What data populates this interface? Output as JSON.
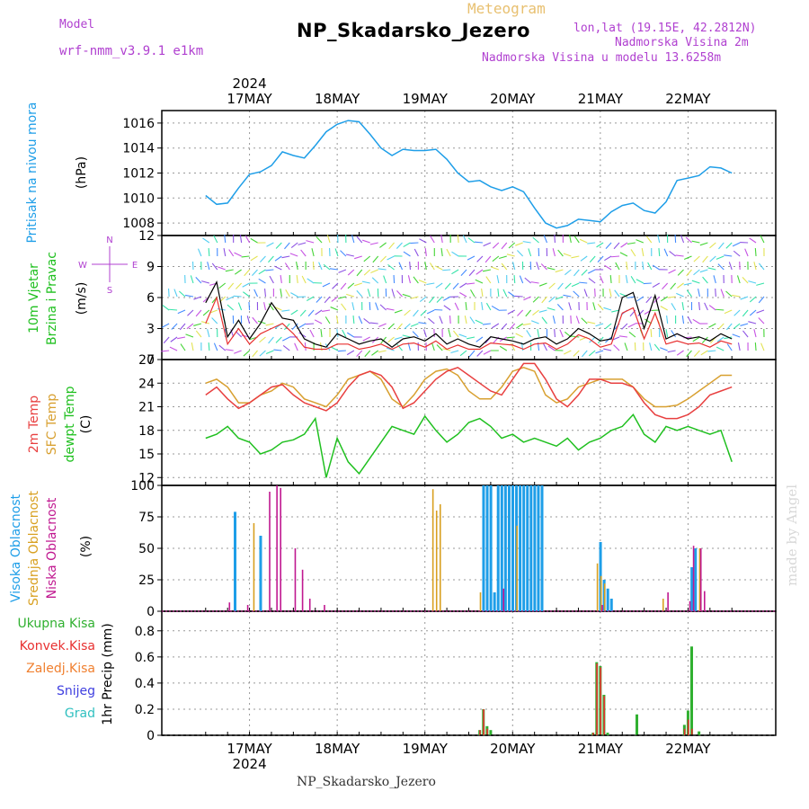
{
  "header": {
    "model_label": "Model",
    "model_value": "wrf-nmm_v3.9.1  e1km",
    "product": "Meteogram",
    "station": "NP_Skadarsko_Jezero",
    "coords": "lon,lat (19.15E, 42.2812N)",
    "elevation": "Nadmorska Visina 2m",
    "model_elevation": "Nadmorska Visina u modelu 13.6258m"
  },
  "footer": {
    "station": "NP_Skadarsko_Jezero",
    "watermark": "made by Angel"
  },
  "colors": {
    "pressure": "#1e9ee8",
    "wind_speed": "#000000",
    "wind_gust": "#e83030",
    "temp2m": "#e84040",
    "tempsfc": "#d8a030",
    "dewpoint": "#20c020",
    "cloud_high": "#1e9ee8",
    "cloud_mid": "#d8a020",
    "cloud_low": "#c01890",
    "precip_total": "#30b030",
    "precip_conv": "#e83030",
    "precip_frozen": "#f08030",
    "precip_snow": "#4040e0",
    "precip_graupel": "#30c0c0"
  },
  "chart_data": [
    {
      "type": "line",
      "panel": "pressure",
      "ylabel_left": "Pritisak na nivou mora",
      "ylabel_unit": "(hPa)",
      "x_unit": "hours since 2024-05-16 12:00 UTC",
      "x_ticks": [
        "17MAY",
        "18MAY",
        "19MAY",
        "20MAY",
        "21MAY",
        "22MAY"
      ],
      "x_top_year": "2024",
      "ylim": [
        1007,
        1017
      ],
      "yticks": [
        1008,
        1010,
        1012,
        1014,
        1016
      ],
      "grid": true,
      "series": [
        {
          "name": "Pritisak na nivou mora",
          "x": [
            0,
            3,
            6,
            9,
            12,
            15,
            18,
            21,
            24,
            27,
            30,
            33,
            36,
            39,
            42,
            45,
            48,
            51,
            54,
            57,
            60,
            63,
            66,
            69,
            72,
            75,
            78,
            81,
            84,
            87,
            90,
            93,
            96,
            99,
            102,
            105,
            108,
            111,
            114,
            117,
            120,
            123,
            126,
            129,
            132,
            135,
            138,
            141,
            144
          ],
          "values": [
            1010.2,
            1009.5,
            1009.6,
            1010.8,
            1011.9,
            1012.1,
            1012.6,
            1013.7,
            1013.4,
            1013.2,
            1014.2,
            1015.3,
            1015.9,
            1016.2,
            1016.1,
            1015.1,
            1014.0,
            1013.4,
            1013.9,
            1013.8,
            1013.8,
            1013.9,
            1013.1,
            1012.0,
            1011.3,
            1011.4,
            1010.9,
            1010.6,
            1010.9,
            1010.5,
            1009.2,
            1008.0,
            1007.6,
            1007.8,
            1008.3,
            1008.2,
            1008.1,
            1008.9,
            1009.4,
            1009.6,
            1009.0,
            1008.8,
            1009.7,
            1011.4,
            1011.6,
            1011.8,
            1012.5,
            1012.4,
            1012.0
          ]
        }
      ]
    },
    {
      "type": "line",
      "panel": "wind",
      "ylabel_left": [
        "10m Vjetar",
        "Brzina i Pravac"
      ],
      "ylabel_unit": "(m/s)",
      "compass": [
        "N",
        "E",
        "W",
        "S"
      ],
      "ylim": [
        0,
        12
      ],
      "yticks": [
        0,
        3,
        6,
        9,
        12
      ],
      "grid": true,
      "series": [
        {
          "name": "10m Vjetar",
          "x": [
            0,
            3,
            6,
            9,
            12,
            15,
            18,
            21,
            24,
            27,
            30,
            33,
            36,
            39,
            42,
            45,
            48,
            51,
            54,
            57,
            60,
            63,
            66,
            69,
            72,
            75,
            78,
            81,
            84,
            87,
            90,
            93,
            96,
            99,
            102,
            105,
            108,
            111,
            114,
            117,
            120,
            123,
            126,
            129,
            132,
            135,
            138,
            141,
            144
          ],
          "values": [
            5.5,
            7.5,
            2.2,
            3.8,
            2.0,
            3.5,
            5.5,
            4.0,
            3.8,
            2.0,
            1.5,
            1.2,
            2.5,
            2.0,
            1.5,
            1.8,
            2.0,
            1.2,
            2.0,
            2.2,
            1.8,
            2.5,
            1.5,
            2.0,
            1.5,
            1.2,
            2.2,
            2.0,
            1.8,
            1.5,
            2.0,
            2.2,
            1.5,
            2.0,
            3.0,
            2.5,
            1.8,
            2.0,
            6.0,
            6.5,
            3.0,
            6.2,
            2.0,
            2.5,
            2.0,
            2.2,
            1.8,
            2.5,
            2.0
          ]
        },
        {
          "name": "Brzina i Pravac",
          "x": [
            0,
            3,
            6,
            9,
            12,
            15,
            18,
            21,
            24,
            27,
            30,
            33,
            36,
            39,
            42,
            45,
            48,
            51,
            54,
            57,
            60,
            63,
            66,
            69,
            72,
            75,
            78,
            81,
            84,
            87,
            90,
            93,
            96,
            99,
            102,
            105,
            108,
            111,
            114,
            117,
            120,
            123,
            126,
            129,
            132,
            135,
            138,
            141,
            144
          ],
          "values": [
            3.5,
            6.0,
            1.5,
            3.0,
            1.5,
            2.5,
            3.0,
            3.5,
            2.5,
            1.2,
            1.0,
            1.0,
            1.5,
            1.5,
            1.0,
            1.2,
            1.5,
            1.0,
            1.5,
            1.6,
            1.2,
            1.8,
            1.0,
            1.4,
            1.0,
            1.0,
            1.6,
            1.5,
            1.4,
            1.0,
            1.5,
            1.6,
            1.0,
            1.5,
            2.4,
            2.0,
            1.2,
            1.5,
            4.5,
            5.0,
            2.0,
            4.5,
            1.5,
            1.8,
            1.5,
            1.6,
            1.2,
            1.8,
            1.5
          ]
        }
      ]
    },
    {
      "type": "line",
      "panel": "temperature",
      "ylabel_left": [
        "2m Temp",
        "SFC Temp",
        "dewpt Temp"
      ],
      "ylabel_unit": "(C)",
      "ylim": [
        11,
        27
      ],
      "yticks": [
        12,
        15,
        18,
        21,
        24,
        27
      ],
      "grid": true,
      "series": [
        {
          "name": "2m Temp",
          "x": [
            0,
            3,
            6,
            9,
            12,
            15,
            18,
            21,
            24,
            27,
            30,
            33,
            36,
            39,
            42,
            45,
            48,
            51,
            54,
            57,
            60,
            63,
            66,
            69,
            72,
            75,
            78,
            81,
            84,
            87,
            90,
            93,
            96,
            99,
            102,
            105,
            108,
            111,
            114,
            117,
            120,
            123,
            126,
            129,
            132,
            135,
            138,
            141,
            144
          ],
          "values": [
            22.5,
            23.5,
            22.0,
            20.8,
            21.5,
            22.5,
            23.5,
            23.8,
            22.5,
            21.5,
            21.0,
            20.5,
            21.5,
            23.5,
            25.0,
            25.5,
            25.0,
            23.5,
            20.8,
            21.5,
            23.0,
            24.5,
            25.5,
            26.0,
            25.0,
            24.0,
            23.0,
            22.5,
            24.5,
            26.5,
            26.5,
            24.5,
            22.0,
            21.0,
            22.5,
            24.5,
            24.5,
            24.0,
            24.0,
            23.5,
            21.5,
            20.0,
            19.5,
            19.5,
            20.0,
            21.0,
            22.5,
            23.0,
            23.5
          ]
        },
        {
          "name": "SFC Temp",
          "x": [
            0,
            3,
            6,
            9,
            12,
            15,
            18,
            21,
            24,
            27,
            30,
            33,
            36,
            39,
            42,
            45,
            48,
            51,
            54,
            57,
            60,
            63,
            66,
            69,
            72,
            75,
            78,
            81,
            84,
            87,
            90,
            93,
            96,
            99,
            102,
            105,
            108,
            111,
            114,
            117,
            120,
            123,
            126,
            129,
            132,
            135,
            138,
            141,
            144
          ],
          "values": [
            24.0,
            24.5,
            23.5,
            21.5,
            21.5,
            22.5,
            23.0,
            24.0,
            23.5,
            22.0,
            21.5,
            21.0,
            22.5,
            24.5,
            25.0,
            25.5,
            24.5,
            22.0,
            21.0,
            22.5,
            24.5,
            25.5,
            25.8,
            25.0,
            23.0,
            22.0,
            22.0,
            23.5,
            25.5,
            26.0,
            25.5,
            22.5,
            21.5,
            22.0,
            23.5,
            24.0,
            24.5,
            24.5,
            24.5,
            23.5,
            22.0,
            21.0,
            21.0,
            21.2,
            22.0,
            23.0,
            24.0,
            25.0,
            25.0
          ]
        },
        {
          "name": "dewpt Temp",
          "x": [
            0,
            3,
            6,
            9,
            12,
            15,
            18,
            21,
            24,
            27,
            30,
            33,
            36,
            39,
            42,
            45,
            48,
            51,
            54,
            57,
            60,
            63,
            66,
            69,
            72,
            75,
            78,
            81,
            84,
            87,
            90,
            93,
            96,
            99,
            102,
            105,
            108,
            111,
            114,
            117,
            120,
            123,
            126,
            129,
            132,
            135,
            138,
            141,
            144
          ],
          "values": [
            17.0,
            17.5,
            18.5,
            17.0,
            16.5,
            15.0,
            15.5,
            16.5,
            16.8,
            17.5,
            19.5,
            12.0,
            17.0,
            14.0,
            12.5,
            14.5,
            16.5,
            18.5,
            18.0,
            17.5,
            19.8,
            18.0,
            16.5,
            17.5,
            19.0,
            19.5,
            18.5,
            17.0,
            17.5,
            16.5,
            17.0,
            16.5,
            16.0,
            17.0,
            15.5,
            16.5,
            17.0,
            18.0,
            18.5,
            20.0,
            17.5,
            16.5,
            18.5,
            18.0,
            18.5,
            18.0,
            17.5,
            18.0,
            14.0
          ]
        }
      ]
    },
    {
      "type": "bar",
      "panel": "cloud",
      "ylabel_left": [
        "Visoka Oblacnost",
        "Srednja Oblacnost",
        "Niska Oblacnost"
      ],
      "ylabel_unit": "(%)",
      "ylim": [
        0,
        100
      ],
      "yticks": [
        0,
        25,
        50,
        75,
        100
      ],
      "grid": true,
      "series": [
        {
          "name": "Visoka Oblacnost",
          "x": [
            8,
            15,
            76,
            77,
            78,
            79,
            80,
            81,
            82,
            83,
            84,
            85,
            86,
            87,
            88,
            89,
            90,
            91,
            92,
            108,
            109,
            110,
            111,
            133,
            134
          ],
          "values": [
            79,
            60,
            100,
            100,
            100,
            15,
            100,
            100,
            100,
            100,
            100,
            100,
            100,
            100,
            100,
            100,
            100,
            100,
            100,
            55,
            25,
            18,
            10,
            35,
            50
          ]
        },
        {
          "name": "Srednja Oblacnost",
          "x": [
            13,
            62,
            63,
            64,
            75,
            85,
            107,
            108,
            109,
            125,
            135
          ],
          "values": [
            70,
            97,
            80,
            85,
            15,
            68,
            38,
            28,
            22,
            10,
            50
          ]
        },
        {
          "name": "Niska Oblacnost",
          "x": [
            6,
            11,
            17,
            19,
            20,
            24,
            26,
            28,
            32,
            81,
            108,
            126,
            132,
            133,
            135,
            136
          ],
          "values": [
            7,
            5,
            95,
            100,
            98,
            50,
            33,
            10,
            5,
            18,
            5,
            15,
            8,
            52,
            50,
            16
          ]
        }
      ]
    },
    {
      "type": "bar",
      "panel": "precip",
      "ylabel_left": [
        "Ukupna Kisa",
        "Konvek.Kisa",
        "Zaledj.Kisa",
        "Snijeg",
        "Grad"
      ],
      "ylabel_unit": "1hr Precip (mm)",
      "ylim": [
        0,
        0.95
      ],
      "yticks": [
        0,
        0.2,
        0.4,
        0.6,
        0.8
      ],
      "grid": true,
      "series": [
        {
          "name": "Ukupna Kisa",
          "x": [
            75,
            76,
            77,
            78,
            106,
            107,
            108,
            109,
            110,
            118,
            131,
            132,
            133,
            135
          ],
          "values": [
            0.04,
            0.2,
            0.07,
            0.04,
            0.02,
            0.56,
            0.53,
            0.31,
            0.02,
            0.16,
            0.08,
            0.19,
            0.68,
            0.03
          ]
        },
        {
          "name": "Konvek.Kisa",
          "x": [
            75,
            76,
            77,
            106,
            107,
            108,
            109,
            131,
            132,
            133
          ],
          "values": [
            0.04,
            0.2,
            0.05,
            0.02,
            0.55,
            0.52,
            0.3,
            0.05,
            0.12,
            0.05
          ]
        }
      ]
    }
  ],
  "panel_labels": {
    "pressure": [
      "Pritisak na nivou mora"
    ],
    "precip_unit": "(mm)",
    "precip_label": "1hr Precip"
  }
}
